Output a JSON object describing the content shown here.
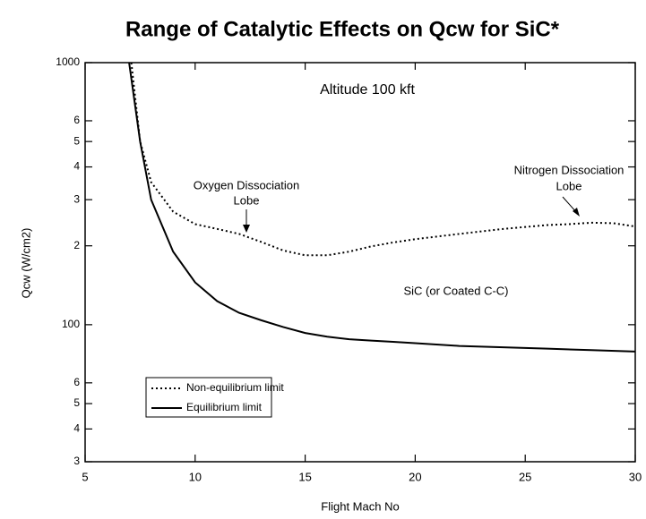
{
  "chart_data": {
    "type": "line",
    "title": "Range of Catalytic Effects on Qcw for SiC*",
    "xlabel": "Flight Mach No",
    "ylabel": "Qcw (W/cm2)",
    "log_y": true,
    "xlim": [
      5,
      30
    ],
    "ylim": [
      30,
      1000
    ],
    "xticks": [
      5,
      10,
      15,
      20,
      25,
      30
    ],
    "yticks": [
      1000,
      {
        "value": 600,
        "label": "6"
      },
      {
        "value": 500,
        "label": "5"
      },
      {
        "value": 400,
        "label": "4"
      },
      {
        "value": 300,
        "label": "3"
      },
      {
        "value": 200,
        "label": "2"
      },
      100,
      {
        "value": 60,
        "label": "6"
      },
      {
        "value": 50,
        "label": "5"
      },
      {
        "value": 40,
        "label": "4"
      },
      {
        "value": 30,
        "label": "3"
      }
    ],
    "legend": "lower left",
    "series": [
      {
        "name": "Non-equilibrium limit",
        "color": "#000000",
        "style": "dotted",
        "x": [
          7.1,
          7.5,
          8,
          9,
          10,
          11,
          12,
          13,
          14,
          15,
          16,
          17,
          18,
          19,
          20,
          21,
          22,
          23,
          24,
          25,
          26,
          27,
          28,
          29,
          30
        ],
        "values": [
          1000,
          500,
          350,
          270,
          242,
          232,
          222,
          207,
          192,
          184,
          184,
          190,
          199,
          206,
          212,
          217,
          222,
          227,
          232,
          236,
          240,
          242,
          245,
          244,
          237
        ]
      },
      {
        "name": "Equilibrium limit",
        "color": "#000000",
        "style": "solid",
        "x": [
          7,
          7.5,
          8,
          9,
          10,
          11,
          12,
          13,
          14,
          15,
          16,
          17,
          18,
          19,
          20,
          22,
          24,
          26,
          28,
          30
        ],
        "values": [
          1000,
          500,
          300,
          190,
          145,
          123,
          111,
          104,
          98,
          93,
          90,
          88,
          87,
          86,
          85,
          83,
          82,
          81,
          80,
          79
        ]
      }
    ],
    "annotations": [
      "Altitude 100 kft",
      "Oxygen Dissociation",
      "Lobe",
      "Nitrogen Dissociation",
      "Lobe",
      "SiC (or Coated C-C)"
    ]
  }
}
